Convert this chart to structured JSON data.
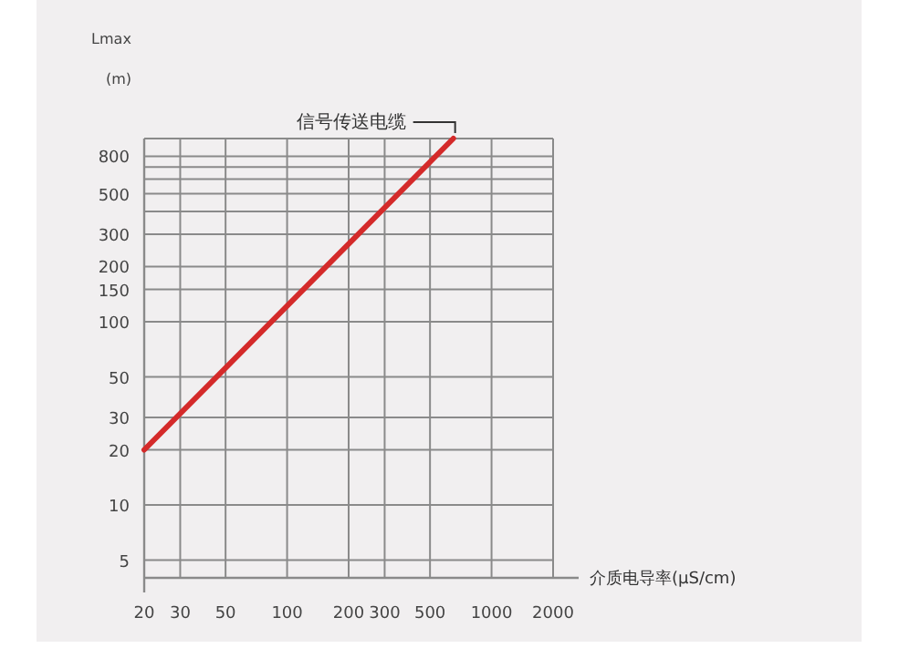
{
  "chart_data": {
    "type": "line",
    "xlabel": "介质电导率(μS/cm)",
    "ylabel": "Lmax (m)",
    "log": "xy",
    "grid": true,
    "x": [
      20,
      650
    ],
    "series": [
      {
        "color": "#d42a2a",
        "values": [
          20,
          1000
        ]
      }
    ],
    "xlim": [
      20,
      2000
    ],
    "ylim": [
      4,
      1000
    ],
    "xticks": [
      20,
      30,
      50,
      100,
      200,
      300,
      500,
      1000,
      2000
    ],
    "yticks": [
      5,
      10,
      20,
      30,
      50,
      100,
      150,
      200,
      300,
      {
        "value": 400,
        "label": null
      },
      500,
      {
        "value": 600,
        "label": null
      },
      {
        "value": 700,
        "label": null
      },
      800,
      {
        "value": 1000,
        "label": null
      }
    ],
    "annotations": [
      {
        "text": "信号传送电缆",
        "x": 650,
        "y": 1000
      }
    ]
  }
}
